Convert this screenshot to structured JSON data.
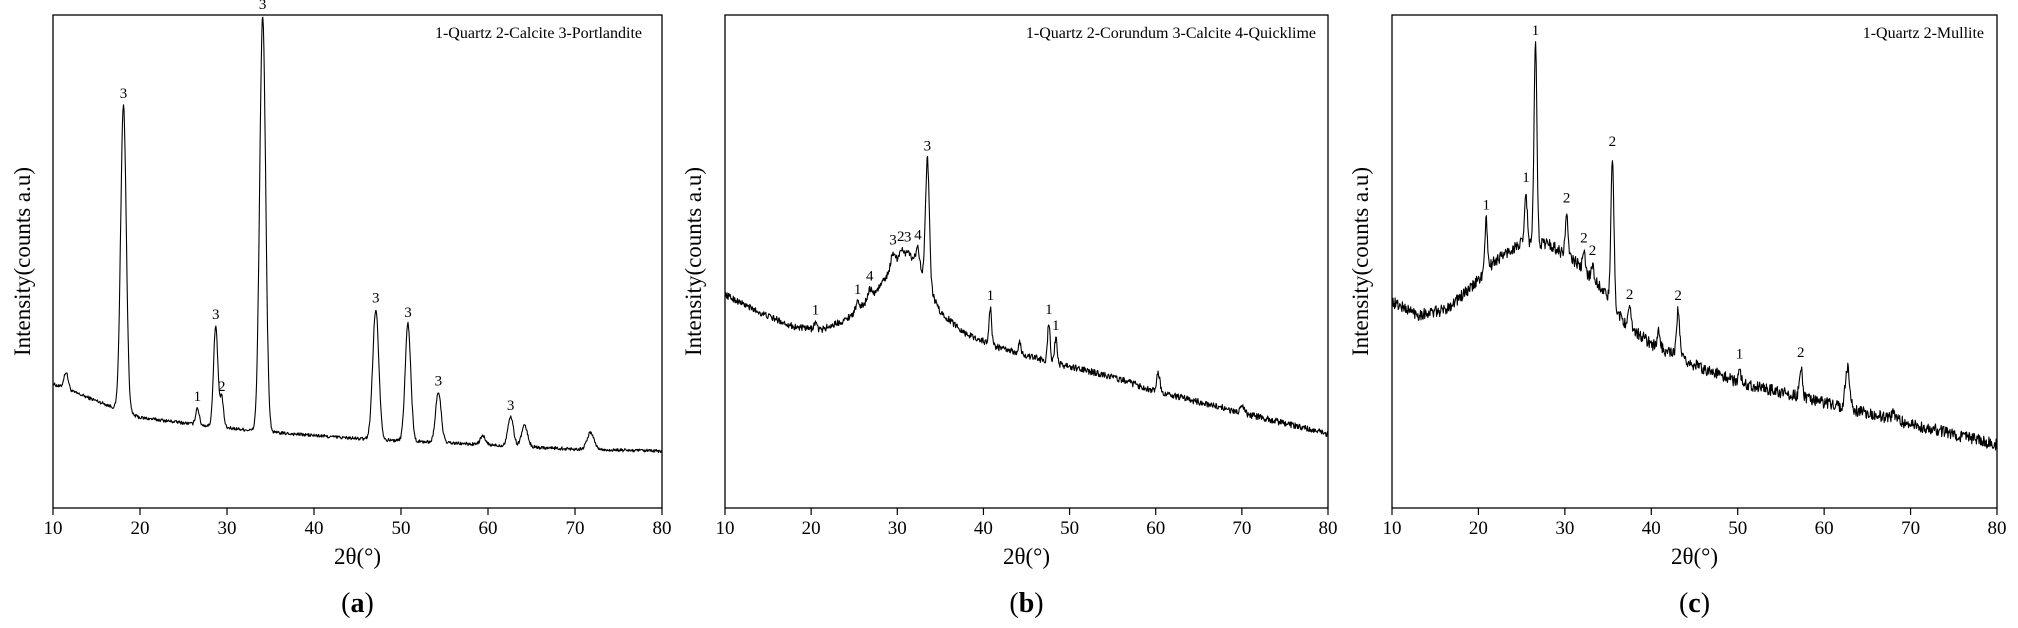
{
  "chart_data": [
    {
      "type": "line",
      "panel_label": "a",
      "xlabel": "2θ(°)",
      "ylabel": "Intensity(counts a.u)",
      "legend_text": "1-Quartz  2-Calcite  3-Portlandite",
      "legend_position": "top-right",
      "xlim": [
        10,
        80
      ],
      "x_ticks": [
        10,
        20,
        30,
        40,
        50,
        60,
        70,
        80
      ],
      "ylim": [
        0,
        1
      ],
      "grid": false,
      "y_ticks_labeled": false,
      "baseline": [
        [
          10,
          0.2
        ],
        [
          15,
          0.16
        ],
        [
          20,
          0.12
        ],
        [
          28,
          0.1
        ],
        [
          35,
          0.085
        ],
        [
          45,
          0.07
        ],
        [
          60,
          0.055
        ],
        [
          70,
          0.045
        ],
        [
          80,
          0.04
        ]
      ],
      "noise": 0.004,
      "peaks": [
        {
          "x": 11.5,
          "height": 0.04,
          "width": 0.25
        },
        {
          "x": 18.1,
          "height": 0.73,
          "width": 0.32,
          "label": "3"
        },
        {
          "x": 26.6,
          "height": 0.04,
          "width": 0.2,
          "label": "1"
        },
        {
          "x": 28.7,
          "height": 0.24,
          "width": 0.25,
          "label": "3"
        },
        {
          "x": 29.4,
          "height": 0.07,
          "width": 0.2,
          "label": "2"
        },
        {
          "x": 34.1,
          "height": 0.99,
          "width": 0.34,
          "label": "3"
        },
        {
          "x": 47.1,
          "height": 0.31,
          "width": 0.35,
          "label": "3"
        },
        {
          "x": 50.8,
          "height": 0.28,
          "width": 0.32,
          "label": "3"
        },
        {
          "x": 54.3,
          "height": 0.12,
          "width": 0.32,
          "label": "3"
        },
        {
          "x": 59.4,
          "height": 0.02,
          "width": 0.3
        },
        {
          "x": 62.6,
          "height": 0.07,
          "width": 0.32,
          "label": "3"
        },
        {
          "x": 64.2,
          "height": 0.05,
          "width": 0.35
        },
        {
          "x": 71.8,
          "height": 0.04,
          "width": 0.4
        }
      ]
    },
    {
      "type": "line",
      "panel_label": "b",
      "xlabel": "2θ(°)",
      "ylabel": "Intensity(counts a.u)",
      "legend_text": "1-Quartz  2-Corundum  3-Calcite  4-Quicklime",
      "legend_position": "top-right",
      "xlim": [
        10,
        80
      ],
      "x_ticks": [
        10,
        20,
        30,
        40,
        50,
        60,
        70,
        80
      ],
      "ylim": [
        0,
        1
      ],
      "grid": false,
      "y_ticks_labeled": false,
      "baseline": [
        [
          10,
          0.49
        ],
        [
          14,
          0.44
        ],
        [
          18,
          0.4
        ],
        [
          21,
          0.39
        ],
        [
          24,
          0.42
        ],
        [
          27,
          0.48
        ],
        [
          29,
          0.55
        ],
        [
          30.5,
          0.6
        ],
        [
          32,
          0.59
        ],
        [
          33.5,
          0.52
        ],
        [
          35,
          0.44
        ],
        [
          38,
          0.38
        ],
        [
          42,
          0.34
        ],
        [
          48,
          0.3
        ],
        [
          55,
          0.26
        ],
        [
          60,
          0.22
        ],
        [
          70,
          0.16
        ],
        [
          80,
          0.1
        ]
      ],
      "noise": 0.009,
      "peaks": [
        {
          "x": 20.5,
          "height": 0.02,
          "width": 0.2,
          "label": "1"
        },
        {
          "x": 25.4,
          "height": 0.02,
          "width": 0.2,
          "label": "1"
        },
        {
          "x": 26.8,
          "height": 0.03,
          "width": 0.25,
          "label": "4"
        },
        {
          "x": 29.5,
          "height": 0.04,
          "width": 0.25,
          "label": "3"
        },
        {
          "x": 30.4,
          "height": 0.02,
          "width": 0.2,
          "label": "2"
        },
        {
          "x": 31.2,
          "height": 0.02,
          "width": 0.2,
          "label": "3"
        },
        {
          "x": 32.4,
          "height": 0.05,
          "width": 0.2,
          "label": "4"
        },
        {
          "x": 33.5,
          "height": 0.35,
          "width": 0.22,
          "label": "3"
        },
        {
          "x": 40.8,
          "height": 0.1,
          "width": 0.15,
          "label": "1"
        },
        {
          "x": 44.2,
          "height": 0.03,
          "width": 0.15
        },
        {
          "x": 47.6,
          "height": 0.11,
          "width": 0.15,
          "label": "1"
        },
        {
          "x": 48.4,
          "height": 0.07,
          "width": 0.15,
          "label": "1"
        },
        {
          "x": 60.3,
          "height": 0.05,
          "width": 0.2
        },
        {
          "x": 70.1,
          "height": 0.02,
          "width": 0.2
        }
      ]
    },
    {
      "type": "line",
      "panel_label": "c",
      "xlabel": "2θ(°)",
      "ylabel": "Intensity(counts a.u)",
      "legend_text": "1-Quartz  2-Mullite",
      "legend_position": "top-right",
      "xlim": [
        10,
        80
      ],
      "x_ticks": [
        10,
        20,
        30,
        40,
        50,
        60,
        70,
        80
      ],
      "ylim": [
        0,
        1
      ],
      "grid": false,
      "y_ticks_labeled": false,
      "baseline": [
        [
          10,
          0.4
        ],
        [
          13,
          0.37
        ],
        [
          16,
          0.38
        ],
        [
          19,
          0.43
        ],
        [
          22,
          0.5
        ],
        [
          25,
          0.54
        ],
        [
          28,
          0.54
        ],
        [
          31,
          0.5
        ],
        [
          34,
          0.44
        ],
        [
          37,
          0.35
        ],
        [
          40,
          0.3
        ],
        [
          45,
          0.25
        ],
        [
          50,
          0.21
        ],
        [
          60,
          0.16
        ],
        [
          70,
          0.11
        ],
        [
          80,
          0.06
        ]
      ],
      "noise": 0.014,
      "peaks": [
        {
          "x": 20.9,
          "height": 0.12,
          "width": 0.15,
          "label": "1"
        },
        {
          "x": 25.5,
          "height": 0.12,
          "width": 0.15,
          "label": "1"
        },
        {
          "x": 26.6,
          "height": 0.47,
          "width": 0.17,
          "label": "1"
        },
        {
          "x": 30.2,
          "height": 0.1,
          "width": 0.15,
          "label": "2"
        },
        {
          "x": 32.2,
          "height": 0.04,
          "width": 0.15,
          "label": "2"
        },
        {
          "x": 33.2,
          "height": 0.03,
          "width": 0.15,
          "label": "2"
        },
        {
          "x": 35.5,
          "height": 0.35,
          "width": 0.17,
          "label": "2"
        },
        {
          "x": 37.5,
          "height": 0.04,
          "width": 0.15,
          "label": "2"
        },
        {
          "x": 40.9,
          "height": 0.04,
          "width": 0.15
        },
        {
          "x": 43.1,
          "height": 0.11,
          "width": 0.18,
          "label": "2"
        },
        {
          "x": 50.2,
          "height": 0.03,
          "width": 0.15,
          "label": "1"
        },
        {
          "x": 57.3,
          "height": 0.07,
          "width": 0.18,
          "label": "2"
        },
        {
          "x": 62.7,
          "height": 0.1,
          "width": 0.25
        },
        {
          "x": 68.0,
          "height": 0.02,
          "width": 0.2
        }
      ]
    }
  ]
}
